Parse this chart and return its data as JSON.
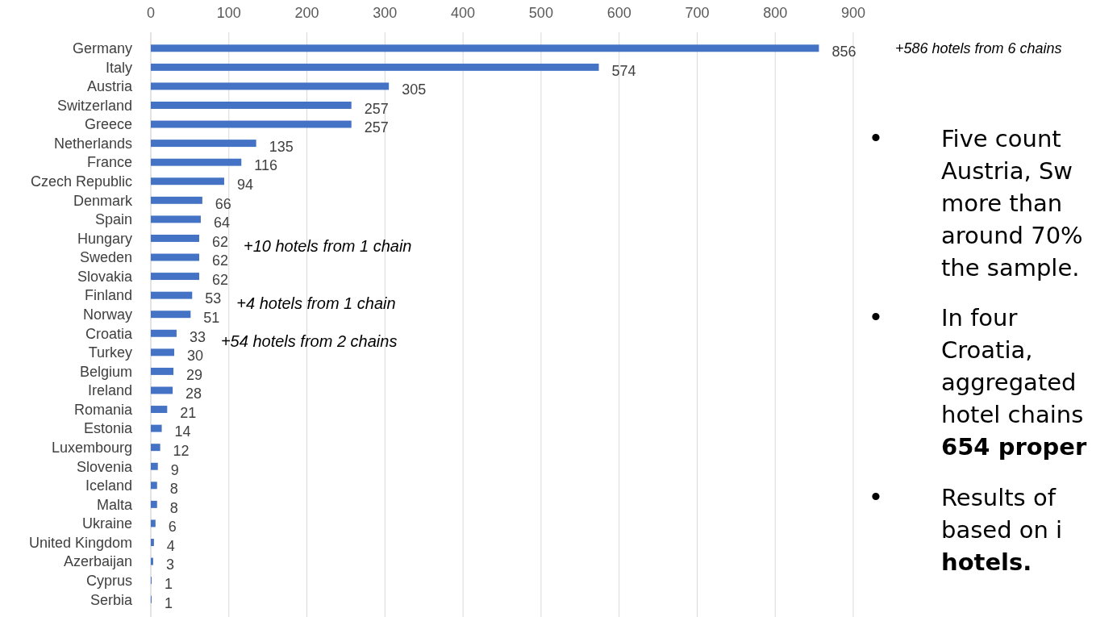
{
  "chart_data": {
    "type": "bar",
    "orientation": "horizontal",
    "categories": [
      "Germany",
      "Italy",
      "Austria",
      "Switzerland",
      "Greece",
      "Netherlands",
      "France",
      "Czech Republic",
      "Denmark",
      "Spain",
      "Hungary",
      "Sweden",
      "Slovakia",
      "Finland",
      "Norway",
      "Croatia",
      "Turkey",
      "Belgium",
      "Ireland",
      "Romania",
      "Estonia",
      "Luxembourg",
      "Slovenia",
      "Iceland",
      "Malta",
      "Ukraine",
      "United Kingdom",
      "Azerbaijan",
      "Cyprus",
      "Serbia"
    ],
    "values": [
      856,
      574,
      305,
      257,
      257,
      135,
      116,
      94,
      66,
      64,
      62,
      62,
      62,
      53,
      51,
      33,
      30,
      29,
      28,
      21,
      14,
      12,
      9,
      8,
      8,
      6,
      4,
      3,
      1,
      1
    ],
    "color": "#4472c4",
    "xlim": [
      0,
      900
    ],
    "xticks": [
      0,
      100,
      200,
      300,
      400,
      500,
      600,
      700,
      800,
      900
    ],
    "grid": "x",
    "data_labels": true,
    "annotations": [
      "+586 hotels from 6 chains",
      "+10 hotels from 1 chain",
      "+4 hotels from 1 chain",
      "+54 hotels from 2 chains",
      "• Five count\nAustria, Sw\nmore than\naround 70%\nthe sample.",
      "• In four\nCroatia,\naggregated\nhotel chains\n654 proper",
      "• Results of\nbased on i\nhotels."
    ]
  }
}
